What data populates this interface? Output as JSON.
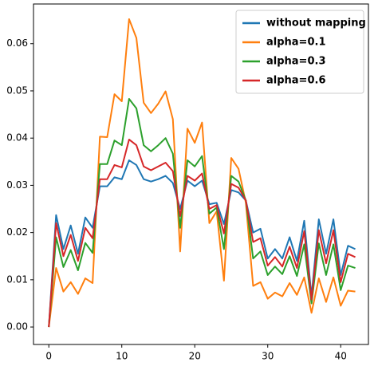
{
  "chart_data": {
    "type": "line",
    "x": [
      0,
      1,
      2,
      3,
      4,
      5,
      6,
      7,
      8,
      9,
      10,
      11,
      12,
      13,
      14,
      15,
      16,
      17,
      18,
      19,
      20,
      21,
      22,
      23,
      24,
      25,
      26,
      27,
      28,
      29,
      30,
      31,
      32,
      33,
      34,
      35,
      36,
      37,
      38,
      39,
      40,
      41,
      42
    ],
    "series": [
      {
        "name": "without mapping",
        "color": "#1f77b4",
        "values": [
          0,
          0.0237,
          0.0165,
          0.0215,
          0.0155,
          0.0232,
          0.021,
          0.0298,
          0.0298,
          0.0317,
          0.0313,
          0.0353,
          0.0343,
          0.0313,
          0.0308,
          0.0313,
          0.032,
          0.0305,
          0.025,
          0.031,
          0.0298,
          0.031,
          0.026,
          0.0263,
          0.0218,
          0.029,
          0.0285,
          0.0268,
          0.02,
          0.0208,
          0.0145,
          0.0165,
          0.0145,
          0.019,
          0.014,
          0.0225,
          0.0065,
          0.0228,
          0.0155,
          0.0228,
          0.011,
          0.0172,
          0.0165
        ]
      },
      {
        "name": "alpha=0.1",
        "color": "#ff7f0e",
        "values": [
          0,
          0.0125,
          0.0075,
          0.0095,
          0.007,
          0.0103,
          0.0093,
          0.0403,
          0.0402,
          0.0493,
          0.0478,
          0.0652,
          0.0612,
          0.0475,
          0.0453,
          0.0473,
          0.0499,
          0.044,
          0.016,
          0.042,
          0.039,
          0.0433,
          0.022,
          0.0245,
          0.0098,
          0.0358,
          0.0335,
          0.0263,
          0.0087,
          0.0095,
          0.006,
          0.0073,
          0.0065,
          0.0093,
          0.0068,
          0.0105,
          0.003,
          0.0103,
          0.0053,
          0.0105,
          0.0045,
          0.0077,
          0.0075
        ]
      },
      {
        "name": "alpha=0.3",
        "color": "#2ca02c",
        "values": [
          0,
          0.019,
          0.0127,
          0.0163,
          0.012,
          0.0178,
          0.0157,
          0.0345,
          0.0345,
          0.0395,
          0.0385,
          0.0483,
          0.0463,
          0.0385,
          0.0372,
          0.0385,
          0.04,
          0.0367,
          0.021,
          0.0353,
          0.034,
          0.0362,
          0.024,
          0.0253,
          0.0165,
          0.032,
          0.0308,
          0.0268,
          0.0145,
          0.016,
          0.011,
          0.0128,
          0.0112,
          0.015,
          0.0108,
          0.0175,
          0.005,
          0.0177,
          0.011,
          0.0175,
          0.0078,
          0.013,
          0.0125
        ]
      },
      {
        "name": "alpha=0.6",
        "color": "#d62728",
        "values": [
          0,
          0.022,
          0.015,
          0.0195,
          0.014,
          0.021,
          0.0188,
          0.0313,
          0.0313,
          0.0343,
          0.0338,
          0.0397,
          0.0385,
          0.034,
          0.0332,
          0.034,
          0.0348,
          0.033,
          0.0235,
          0.032,
          0.031,
          0.0325,
          0.025,
          0.0258,
          0.0198,
          0.0303,
          0.0295,
          0.0268,
          0.018,
          0.0188,
          0.013,
          0.0148,
          0.0128,
          0.017,
          0.0125,
          0.0203,
          0.0058,
          0.0205,
          0.0135,
          0.0205,
          0.0095,
          0.0155,
          0.0148
        ]
      }
    ],
    "xlim": [
      -2.1,
      43.8
    ],
    "ylim": [
      -0.0037,
      0.0684
    ],
    "xticks": [
      0,
      10,
      20,
      30,
      40
    ],
    "yticks": [
      {
        "value": 0,
        "label": "0.00"
      },
      0.01,
      0.02,
      0.03,
      0.04,
      0.05,
      0.06
    ],
    "legend": "upper right"
  }
}
